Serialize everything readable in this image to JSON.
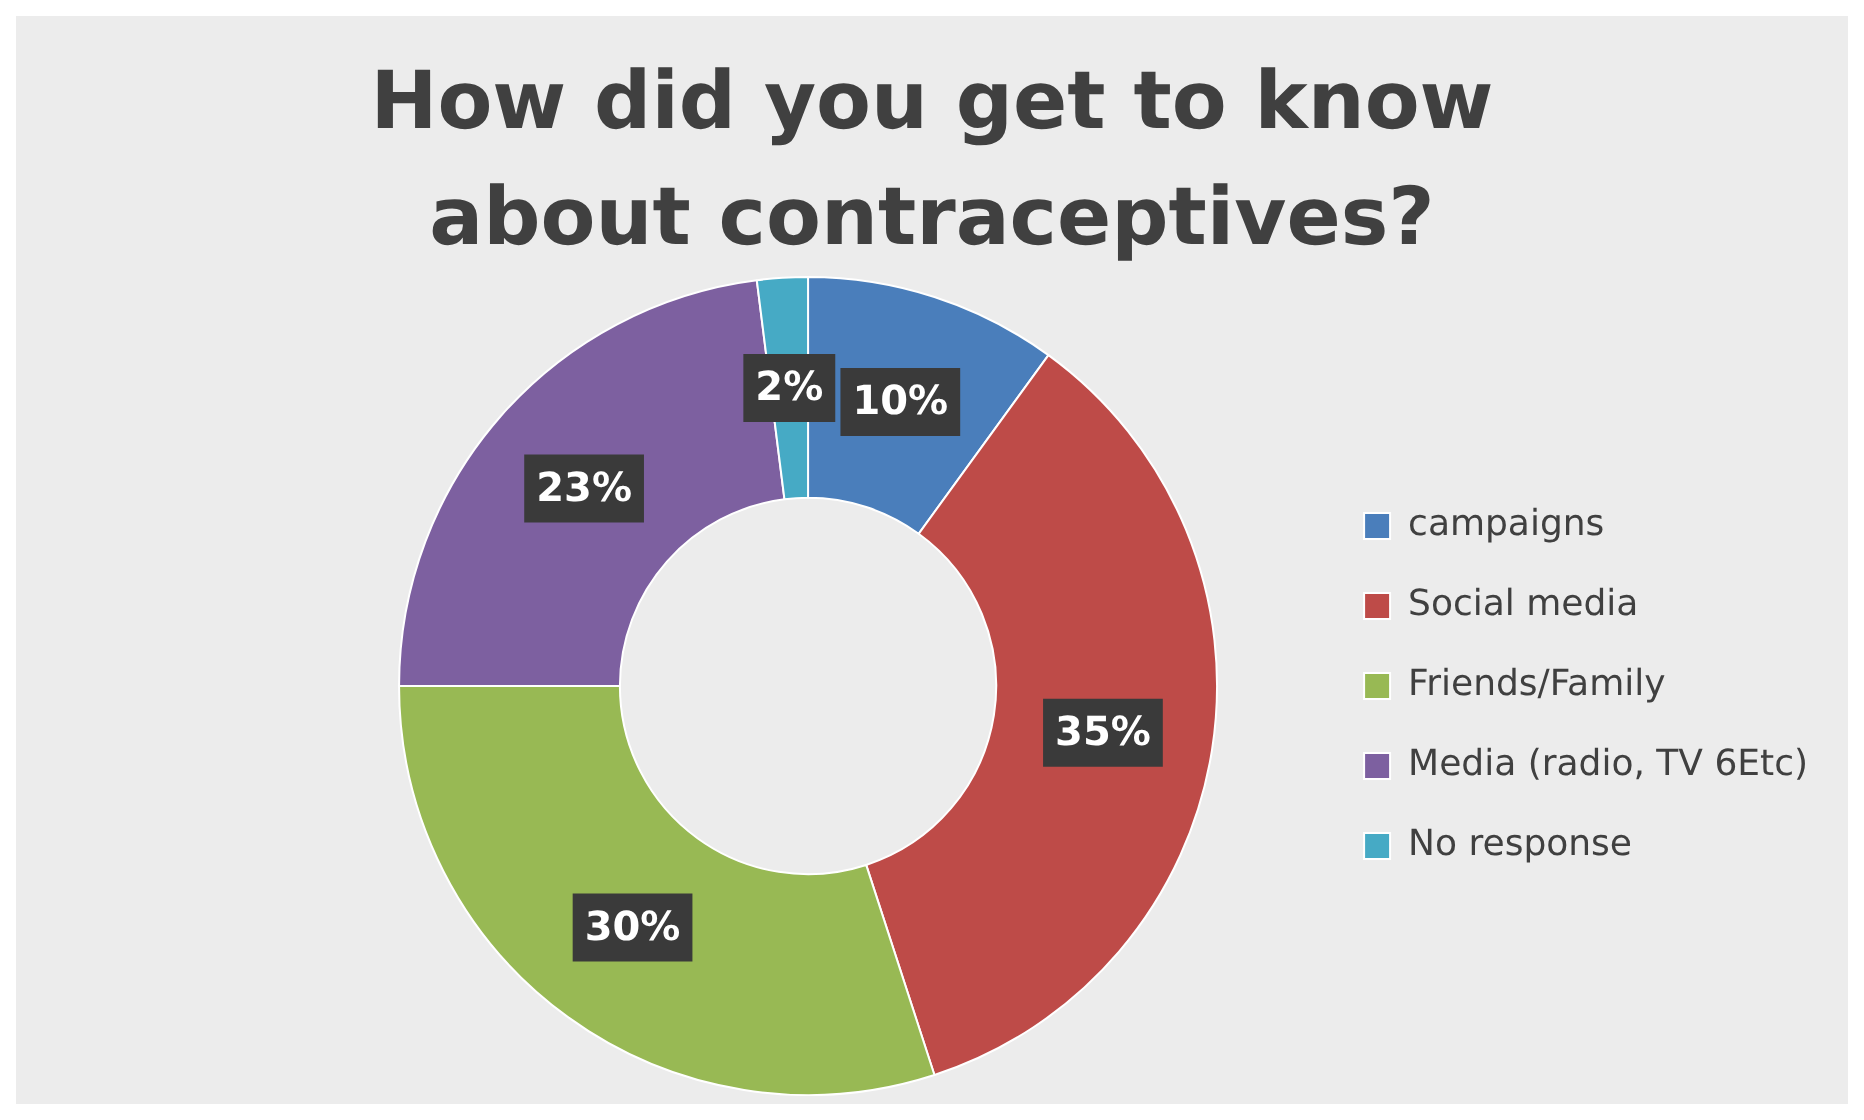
{
  "chart_data": {
    "type": "donut",
    "title": "How did you get to know about contraceptives?",
    "categories": [
      "campaigns",
      "Social media",
      "Friends/Family",
      "Media (radio, TV 6Etc)",
      "No response"
    ],
    "values": [
      10,
      35,
      30,
      23,
      2
    ],
    "colors": [
      "#4a7ebb",
      "#be4b48",
      "#98b954",
      "#7d60a0",
      "#46aac5"
    ],
    "value_labels": [
      "10%",
      "35%",
      "30%",
      "23%",
      "2%"
    ],
    "legend": "right"
  }
}
